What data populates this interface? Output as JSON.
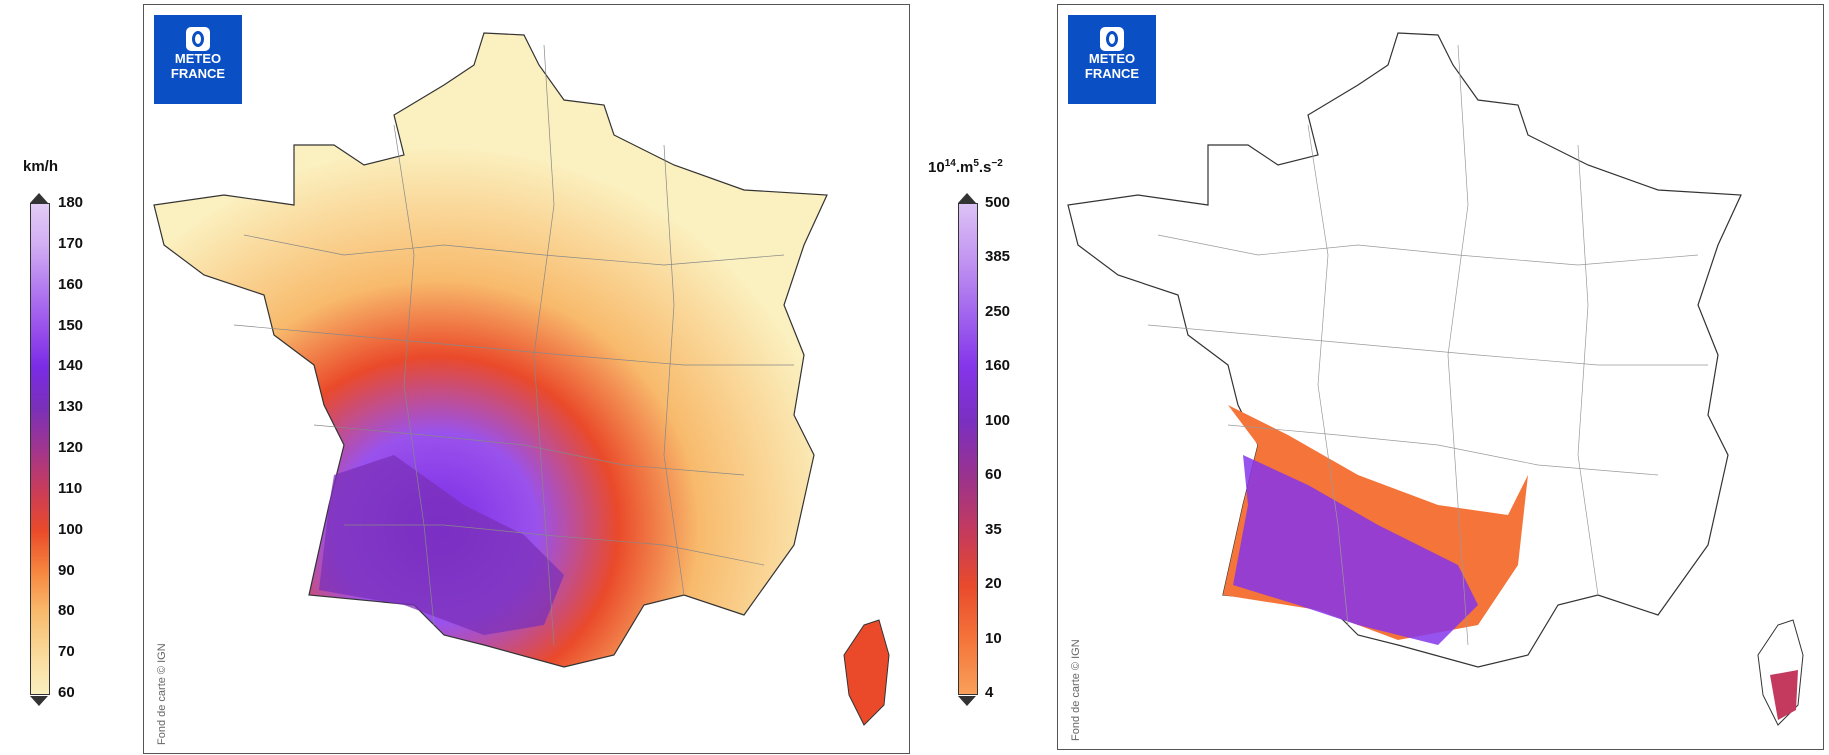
{
  "legend_left": {
    "unit": "km/h",
    "ticks": [
      "180",
      "170",
      "160",
      "150",
      "140",
      "130",
      "120",
      "110",
      "100",
      "90",
      "80",
      "70",
      "60"
    ],
    "colors": [
      "#e2ccf5",
      "#d2aef3",
      "#b47ef0",
      "#9a52ec",
      "#7a2be6",
      "#7b30b8",
      "#a0358f",
      "#c93c5a",
      "#ea4a2a",
      "#f7863f",
      "#f8ba6c",
      "#f9d99a",
      "#fbf0bf"
    ]
  },
  "legend_right": {
    "unit_base": "10",
    "unit_exp": "14",
    "unit_mid": ".m",
    "unit_exp2": "5",
    "unit_tail": ".s",
    "unit_exp3": "−2",
    "ticks": [
      "500",
      "385",
      "250",
      "160",
      "100",
      "60",
      "35",
      "20",
      "10",
      "4"
    ],
    "colors": [
      "#dcc2f5",
      "#c396f1",
      "#a266ee",
      "#8535ea",
      "#7b2fc0",
      "#9a338e",
      "#c43a5e",
      "#e84a2c",
      "#f5743a",
      "#f8a05a"
    ]
  },
  "logo": {
    "line1": "METEO",
    "line2": "FRANCE"
  },
  "credit": "Fond de carte © IGN",
  "colors": {
    "logo_bg": "#0a4fc3",
    "land_low": "#fbf0bf",
    "land_mid": "#f8ba6c",
    "high_orange": "#ea4a2a",
    "high_purple": "#7b2fc0"
  }
}
